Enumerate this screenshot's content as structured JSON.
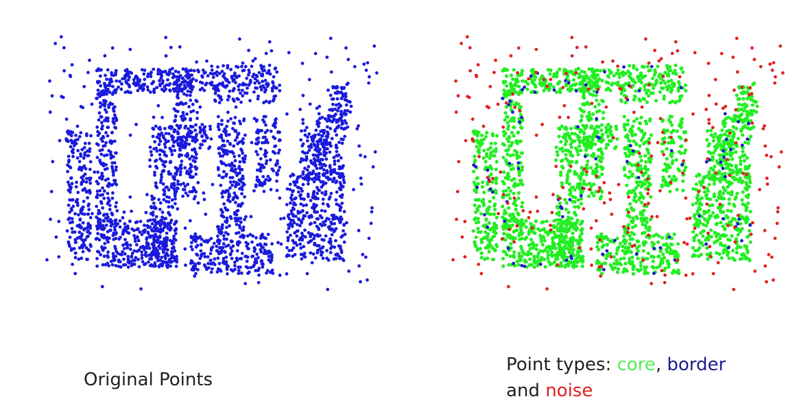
{
  "colors": {
    "original": "#1a1adc",
    "core": "#22ee22",
    "border": "#1a1acc",
    "noise": "#e02222",
    "caption_core": "#55ee55",
    "caption_border": "#1c1c8c",
    "caption_noise": "#e02020"
  },
  "captions": {
    "left": "Original Points",
    "right_prefix": "Point types: ",
    "right_core": "core",
    "right_sep": ", ",
    "right_border": "border",
    "right_and": "and ",
    "right_noise": "noise"
  },
  "chart_data": [
    {
      "type": "scatter",
      "title": "",
      "series": [
        {
          "name": "",
          "color": "#1a1adc"
        }
      ],
      "grid": false
    },
    {
      "type": "scatter",
      "title": "",
      "series": [
        {
          "name": "core",
          "color": "#22ee22"
        },
        {
          "name": "border",
          "color": "#1a1acc"
        },
        {
          "name": "noise",
          "color": "#e02222"
        }
      ],
      "grid": false
    }
  ]
}
